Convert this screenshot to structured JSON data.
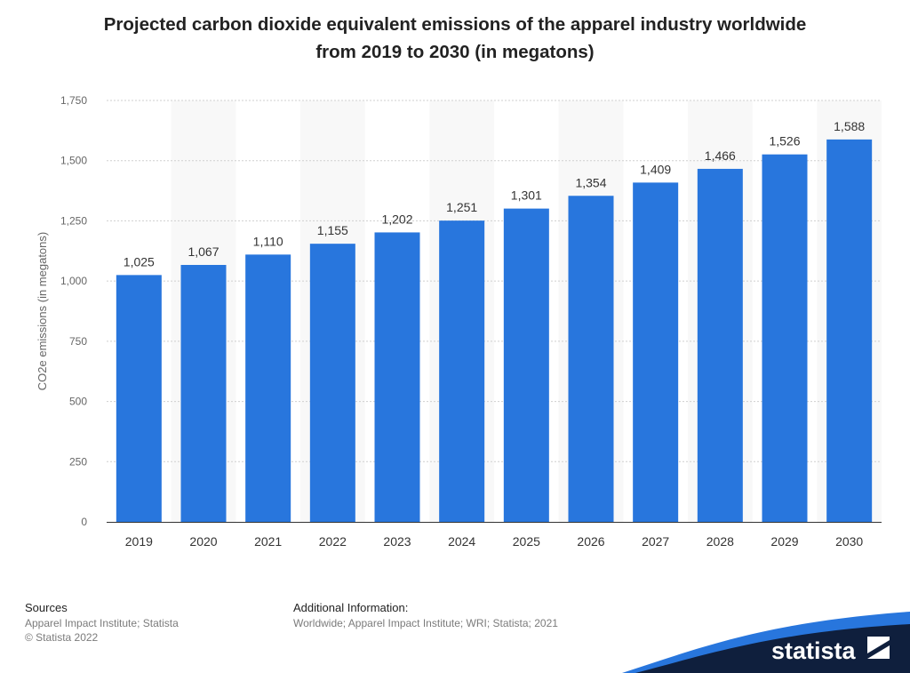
{
  "chart_data": {
    "type": "bar",
    "title": "Projected carbon dioxide equivalent emissions of the apparel industry worldwide from 2019 to 2030 (in megatons)",
    "title_lines": [
      "Projected carbon dioxide equivalent emissions of the apparel industry worldwide",
      "from 2019 to 2030 (in megatons)"
    ],
    "categories": [
      "2019",
      "2020",
      "2021",
      "2022",
      "2023",
      "2024",
      "2025",
      "2026",
      "2027",
      "2028",
      "2029",
      "2030"
    ],
    "values": [
      1025,
      1067,
      1110,
      1155,
      1202,
      1251,
      1301,
      1354,
      1409,
      1466,
      1526,
      1588
    ],
    "value_labels": [
      "1,025",
      "1,067",
      "1,110",
      "1,155",
      "1,202",
      "1,251",
      "1,301",
      "1,354",
      "1,409",
      "1,466",
      "1,526",
      "1,588"
    ],
    "xlabel": "",
    "ylabel": "CO2e emissions (in megatons)",
    "ylim": [
      0,
      1750
    ],
    "yticks": [
      0,
      250,
      500,
      750,
      1000,
      1250,
      1500,
      1750
    ],
    "ytick_labels": [
      "0",
      "250",
      "500",
      "750",
      "1,000",
      "1,250",
      "1,500",
      "1,750"
    ],
    "grid": true,
    "bar_color": "#2876dd"
  },
  "footer": {
    "sources_heading": "Sources",
    "sources_text": "Apparel Impact Institute; Statista",
    "copyright": "© Statista 2022",
    "info_heading": "Additional Information:",
    "info_text": "Worldwide; Apparel Impact Institute; WRI; Statista; 2021"
  },
  "brand": {
    "name": "statista",
    "logo_icon": "statista-logo-icon",
    "wave_color": "#0f1f3d",
    "accent_color": "#2876dd"
  }
}
